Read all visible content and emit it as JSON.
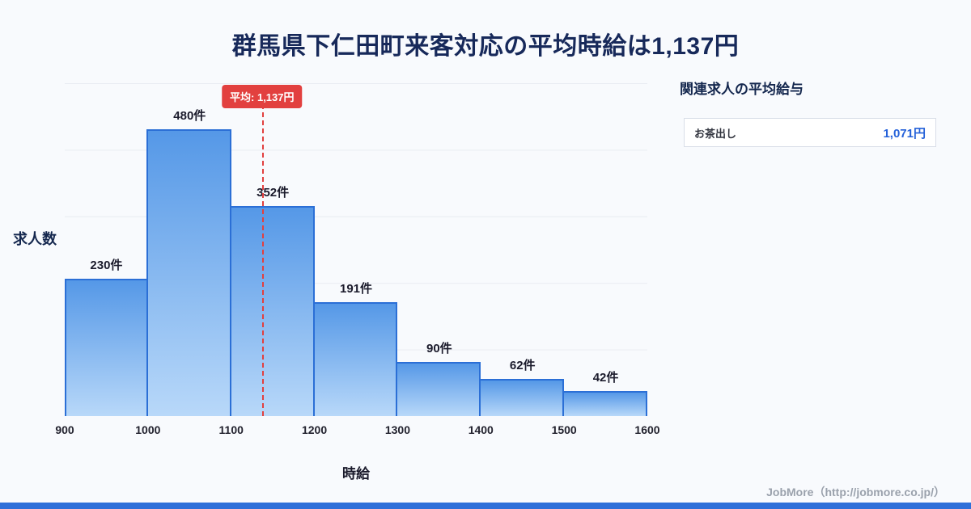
{
  "title": "群馬県下仁田町来客対応の平均時給は1,137円",
  "chart_data": {
    "type": "bar",
    "title": "群馬県下仁田町来客対応の平均時給は1,137円",
    "xlabel": "時給",
    "ylabel": "求人数",
    "bin_edges": [
      900,
      1000,
      1100,
      1200,
      1300,
      1400,
      1500,
      1600
    ],
    "categories": [
      "900-1000",
      "1000-1100",
      "1100-1200",
      "1200-1300",
      "1300-1400",
      "1400-1500",
      "1500-1600"
    ],
    "values": [
      230,
      480,
      352,
      191,
      90,
      62,
      42
    ],
    "value_labels": [
      "230件",
      "480件",
      "352件",
      "191件",
      "90件",
      "62件",
      "42件"
    ],
    "tick_labels": [
      "900",
      "1000",
      "1100",
      "1200",
      "1300",
      "1400",
      "1500",
      "1600"
    ],
    "mean": 1137,
    "mean_label": "平均: 1,137円",
    "ylim": [
      0,
      480
    ],
    "grid": true,
    "legend": "none",
    "colors": {
      "bar_top": "#5598e7",
      "bar_bottom": "#b8d8f9",
      "bar_border": "#2b6fd6",
      "mean_line": "#e2403f",
      "badge_bg": "#e2403f",
      "badge_text": "#ffffff"
    }
  },
  "side_panel": {
    "heading": "関連求人の平均給与",
    "items": [
      {
        "label": "お茶出し",
        "value": "1,071円"
      }
    ]
  },
  "footer": {
    "credit": "JobMore（http://jobmore.co.jp/）",
    "accent_bar_color": "#2e6fd9"
  }
}
